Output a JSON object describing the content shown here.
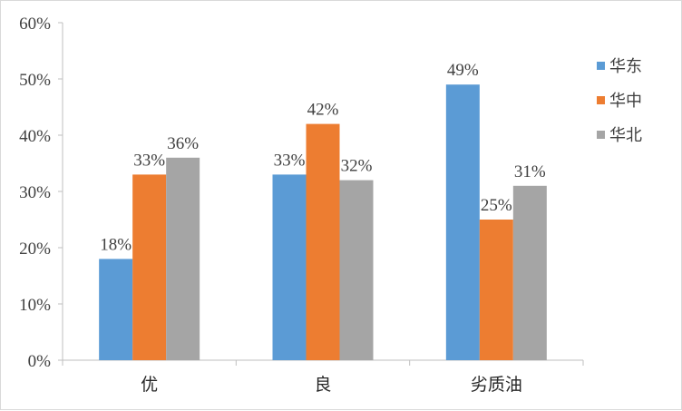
{
  "chart_data": {
    "type": "bar",
    "categories": [
      "优",
      "良",
      "劣质油"
    ],
    "series": [
      {
        "name": "华东",
        "color": "#5b9bd5",
        "values": [
          18,
          33,
          49
        ],
        "labels": [
          "18%",
          "33%",
          "49%"
        ]
      },
      {
        "name": "华中",
        "color": "#ed7d31",
        "values": [
          33,
          42,
          25
        ],
        "labels": [
          "33%",
          "42%",
          "25%"
        ]
      },
      {
        "name": "华北",
        "color": "#a5a5a5",
        "values": [
          36,
          32,
          31
        ],
        "labels": [
          "36%",
          "32%",
          "31%"
        ]
      }
    ],
    "ylim": [
      0,
      60
    ],
    "yticks": [
      0,
      10,
      20,
      30,
      40,
      50,
      60
    ],
    "ytick_labels": [
      "0%",
      "10%",
      "20%",
      "30%",
      "40%",
      "50%",
      "60%"
    ],
    "grid": false,
    "legend": "right"
  }
}
